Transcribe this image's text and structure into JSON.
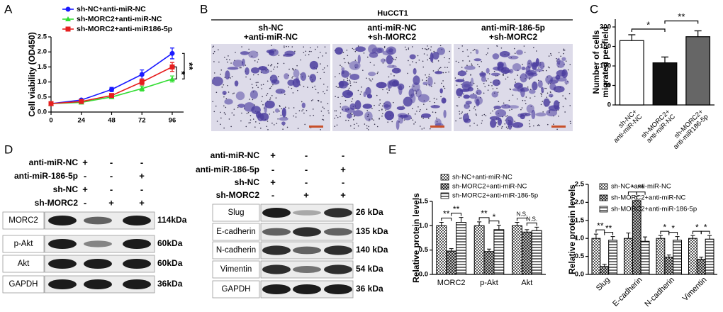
{
  "panel_labels": [
    "A",
    "B",
    "C",
    "D",
    "E"
  ],
  "chart_data": [
    {
      "type": "line",
      "legend": "upper left",
      "ylabel": "Cell viability (OD450)",
      "x": [
        0,
        24,
        48,
        72,
        96
      ],
      "xlim": [
        0,
        105
      ],
      "xticks": [
        0,
        24,
        48,
        72,
        96
      ],
      "ylim": [
        0,
        2.5
      ],
      "yticks": [
        {
          "value": 0,
          "label": "0.0"
        },
        {
          "value": 0.5,
          "label": "0.5"
        },
        {
          "value": 1,
          "label": "1.0"
        },
        {
          "value": 1.5,
          "label": "1.5"
        },
        {
          "value": 2,
          "label": "2.0"
        },
        {
          "value": 2.5,
          "label": "2.5"
        }
      ],
      "series": [
        {
          "name": "sh-NC+anti-miR-NC",
          "color": "#1a1aff",
          "marker": "circle",
          "values": [
            0.28,
            0.4,
            0.75,
            1.25,
            1.95
          ],
          "errors": [
            0.02,
            0.03,
            0.07,
            0.15,
            0.18
          ]
        },
        {
          "name": "sh-MORC2+anti-miR-NC",
          "color": "#33dd33",
          "marker": "triangle",
          "values": [
            0.28,
            0.32,
            0.5,
            0.78,
            1.1
          ],
          "errors": [
            0.02,
            0.02,
            0.05,
            0.08,
            0.1
          ]
        },
        {
          "name": "sh-MORC2+anti-miR186-5p",
          "color": "#e61e1e",
          "marker": "square",
          "values": [
            0.28,
            0.35,
            0.55,
            1.0,
            1.5
          ],
          "errors": [
            0.02,
            0.03,
            0.05,
            0.1,
            0.15
          ]
        }
      ],
      "significance": [
        "**",
        "*"
      ]
    },
    {
      "type": "bar",
      "ylabel": [
        "Number of cells",
        "migrated per field"
      ],
      "categories": [
        [
          "sh-NC+",
          "anti-miR-NC"
        ],
        [
          "sh-MORC2+",
          "anti-miR-NC"
        ],
        [
          "sh-MORC2+",
          "anti-miR186-5p"
        ]
      ],
      "values": [
        165,
        108,
        175
      ],
      "errors": [
        15,
        15,
        15
      ],
      "colors": [
        "#ffffff",
        "#111111",
        "#666666"
      ],
      "ylim": [
        0,
        220
      ],
      "yticks": [
        0,
        50,
        100,
        150,
        200
      ],
      "significance": [
        "*",
        "**"
      ]
    },
    {
      "type": "grouped_bar",
      "legend": "upper left",
      "xtick_rotation": 0,
      "ylabel": "Relative protein levels",
      "categories": [
        "MORC2",
        "p-Akt",
        "Akt"
      ],
      "ylim": [
        0,
        1.5
      ],
      "yticks": [
        {
          "value": 0,
          "label": "0.0"
        },
        {
          "value": 0.5,
          "label": "0.5"
        },
        {
          "value": 1,
          "label": "1.0"
        },
        {
          "value": 1.5,
          "label": "1.5"
        }
      ],
      "series": [
        {
          "name": "sh-NC+anti-miR-NC",
          "color": "#555555",
          "pattern": "checker",
          "values": [
            1.0,
            1.0,
            1.0
          ],
          "errors": [
            0.07,
            0.08,
            0.07
          ]
        },
        {
          "name": "sh-MORC2+anti-miR-NC",
          "color": "#222222",
          "pattern": "crosshatch",
          "values": [
            0.48,
            0.47,
            0.87
          ],
          "errors": [
            0.05,
            0.05,
            0.05
          ]
        },
        {
          "name": "sh-MORC2+anti-miR-186-5p",
          "color": "#333333",
          "pattern": "horizontal",
          "values": [
            1.07,
            0.92,
            0.9
          ],
          "errors": [
            0.1,
            0.09,
            0.07
          ]
        }
      ],
      "significance": [
        [
          "**",
          "**"
        ],
        [
          "**",
          "*"
        ],
        [
          "N.S.",
          "N.S."
        ]
      ]
    },
    {
      "type": "grouped_bar",
      "legend": "upper left",
      "xtick_rotation": 45,
      "ylabel": "Relative protein levels",
      "categories": [
        "Slug",
        "E-cadherin",
        "N-cadherin",
        "Vimentin"
      ],
      "ylim": [
        0,
        2.5
      ],
      "yticks": [
        {
          "value": 0,
          "label": "0.0"
        },
        {
          "value": 0.5,
          "label": "0.5"
        },
        {
          "value": 1,
          "label": "1.0"
        },
        {
          "value": 1.5,
          "label": "1.5"
        },
        {
          "value": 2,
          "label": "2.0"
        },
        {
          "value": 2.5,
          "label": "2.5"
        }
      ],
      "series": [
        {
          "name": "sh-NC+anti-miR-NC",
          "color": "#555555",
          "pattern": "checker",
          "values": [
            1.0,
            1.0,
            1.0,
            1.0
          ],
          "errors": [
            0.12,
            0.15,
            0.08,
            0.08
          ]
        },
        {
          "name": "sh-MORC2+anti-miR-NC",
          "color": "#222222",
          "pattern": "crosshatch",
          "values": [
            0.22,
            2.05,
            0.48,
            0.42
          ],
          "errors": [
            0.06,
            0.12,
            0.06,
            0.06
          ]
        },
        {
          "name": "sh-MORC2+anti-miR-186-5p",
          "color": "#333333",
          "pattern": "horizontal",
          "values": [
            0.95,
            0.92,
            0.95,
            0.98
          ],
          "errors": [
            0.1,
            0.12,
            0.1,
            0.1
          ]
        }
      ],
      "significance": [
        [
          "**",
          "**"
        ],
        [
          "*",
          "**"
        ],
        [
          "*",
          "*"
        ],
        [
          "*",
          "*"
        ]
      ]
    }
  ],
  "migration_assay": {
    "title": "HuCCT1",
    "columns": [
      [
        "sh-NC",
        "+anti-miR-NC"
      ],
      [
        "anti-miR-NC",
        "+sh-MORC2"
      ],
      [
        "anti-miR-186-5p",
        "+sh-MORC2"
      ]
    ]
  },
  "western_blots": [
    {
      "conditions": [
        {
          "label": "anti-miR-NC",
          "signs": [
            "+",
            "-",
            "-"
          ]
        },
        {
          "label": "anti-miR-186-5p",
          "signs": [
            "-",
            "-",
            "+"
          ]
        },
        {
          "label": "sh-NC",
          "signs": [
            "+",
            "-",
            "-"
          ]
        },
        {
          "label": "sh-MORC2",
          "signs": [
            "-",
            "+",
            "+"
          ]
        }
      ],
      "bands": [
        {
          "protein": "MORC2",
          "size": "114kDa"
        },
        {
          "protein": "p-Akt",
          "size": "60kDa"
        },
        {
          "protein": "Akt",
          "size": "60kDa"
        },
        {
          "protein": "GAPDH",
          "size": "36kDa"
        }
      ]
    },
    {
      "conditions": [
        {
          "label": "anti-miR-NC",
          "signs": [
            "+",
            "-",
            "-"
          ]
        },
        {
          "label": "anti-miR-186-5p",
          "signs": [
            "-",
            "-",
            "+"
          ]
        },
        {
          "label": "sh-NC",
          "signs": [
            "+",
            "-",
            "-"
          ]
        },
        {
          "label": "sh-MORC2",
          "signs": [
            "-",
            "+",
            "+"
          ]
        }
      ],
      "bands": [
        {
          "protein": "Slug",
          "size": "26 kDa"
        },
        {
          "protein": "E-cadherin",
          "size": "135 kDa"
        },
        {
          "protein": "N-cadherin",
          "size": "140 kDa"
        },
        {
          "protein": "Vimentin",
          "size": "54 kDa"
        },
        {
          "protein": "GAPDH",
          "size": "36 kDa"
        }
      ]
    }
  ]
}
